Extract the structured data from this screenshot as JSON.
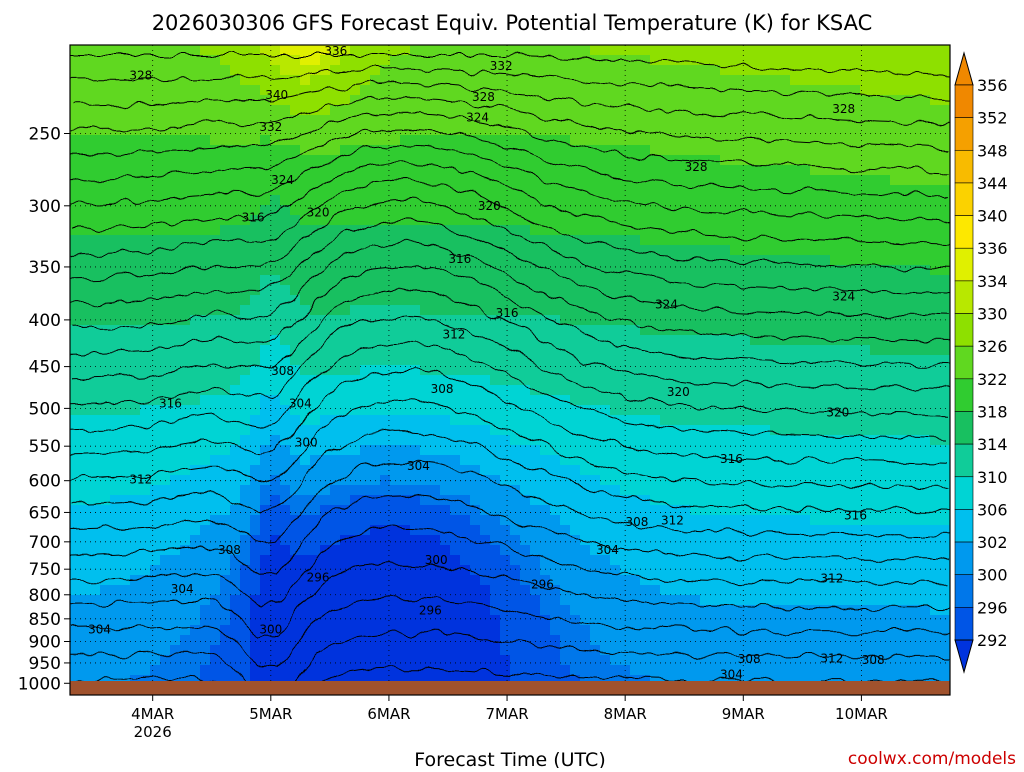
{
  "chart_data": {
    "type": "heatmap",
    "title": "2026030306 GFS Forecast Equiv. Potential Temperature (K) for KSAC",
    "xlabel": "Forecast Time (UTC)",
    "ylabel": "",
    "credit": "coolwx.com/models",
    "x_ticks": [
      {
        "day": 4,
        "label": "4MAR",
        "sublabel": "2026"
      },
      {
        "day": 5,
        "label": "5MAR",
        "sublabel": ""
      },
      {
        "day": 6,
        "label": "6MAR",
        "sublabel": ""
      },
      {
        "day": 7,
        "label": "7MAR",
        "sublabel": ""
      },
      {
        "day": 8,
        "label": "8MAR",
        "sublabel": ""
      },
      {
        "day": 9,
        "label": "9MAR",
        "sublabel": ""
      },
      {
        "day": 10,
        "label": "10MAR",
        "sublabel": ""
      }
    ],
    "x_range_days": [
      3.3,
      10.75
    ],
    "y_ticks": [
      250,
      300,
      350,
      400,
      450,
      500,
      550,
      600,
      650,
      700,
      750,
      800,
      850,
      900,
      950,
      1000
    ],
    "y_range_hpa": [
      200,
      1030
    ],
    "y_scale": "log-pressure",
    "colorbar": {
      "labels": [
        356,
        352,
        348,
        344,
        340,
        336,
        334,
        330,
        326,
        322,
        318,
        314,
        310,
        306,
        302,
        300,
        296,
        292
      ],
      "colors": [
        "#f08800",
        "#f5a000",
        "#f8bb00",
        "#fbd200",
        "#fde800",
        "#e0f000",
        "#b8e800",
        "#8ee000",
        "#60d820",
        "#30cc30",
        "#18c060",
        "#10cc99",
        "#00d4d4",
        "#00bfee",
        "#0099ee",
        "#0077ea",
        "#0055e6",
        "#0033dd"
      ],
      "extend": "both"
    },
    "contour_labels": [
      {
        "text": "336",
        "day": 5.55,
        "p": 203
      },
      {
        "text": "332",
        "day": 6.95,
        "p": 211
      },
      {
        "text": "328",
        "day": 3.9,
        "p": 216
      },
      {
        "text": "340",
        "day": 5.05,
        "p": 227
      },
      {
        "text": "328",
        "day": 6.8,
        "p": 228
      },
      {
        "text": "324",
        "day": 6.75,
        "p": 240
      },
      {
        "text": "332",
        "day": 5.0,
        "p": 246
      },
      {
        "text": "328",
        "day": 9.85,
        "p": 235
      },
      {
        "text": "328",
        "day": 8.6,
        "p": 272
      },
      {
        "text": "324",
        "day": 5.1,
        "p": 281
      },
      {
        "text": "320",
        "day": 5.4,
        "p": 305
      },
      {
        "text": "320",
        "day": 6.85,
        "p": 300
      },
      {
        "text": "316",
        "day": 4.85,
        "p": 309
      },
      {
        "text": "316",
        "day": 6.6,
        "p": 343
      },
      {
        "text": "324",
        "day": 8.35,
        "p": 385
      },
      {
        "text": "324",
        "day": 9.85,
        "p": 377
      },
      {
        "text": "316",
        "day": 7.0,
        "p": 393
      },
      {
        "text": "312",
        "day": 6.55,
        "p": 415
      },
      {
        "text": "308",
        "day": 5.1,
        "p": 455
      },
      {
        "text": "308",
        "day": 6.45,
        "p": 476
      },
      {
        "text": "316",
        "day": 4.15,
        "p": 494
      },
      {
        "text": "304",
        "day": 5.25,
        "p": 494
      },
      {
        "text": "320",
        "day": 8.45,
        "p": 480
      },
      {
        "text": "320",
        "day": 9.8,
        "p": 505
      },
      {
        "text": "300",
        "day": 5.3,
        "p": 545
      },
      {
        "text": "304",
        "day": 6.25,
        "p": 578
      },
      {
        "text": "316",
        "day": 8.9,
        "p": 568
      },
      {
        "text": "312",
        "day": 3.9,
        "p": 598
      },
      {
        "text": "308",
        "day": 8.1,
        "p": 666
      },
      {
        "text": "312",
        "day": 8.4,
        "p": 663
      },
      {
        "text": "316",
        "day": 9.95,
        "p": 655
      },
      {
        "text": "308",
        "day": 4.65,
        "p": 715
      },
      {
        "text": "304",
        "day": 7.85,
        "p": 715
      },
      {
        "text": "300",
        "day": 6.4,
        "p": 733
      },
      {
        "text": "296",
        "day": 5.4,
        "p": 766
      },
      {
        "text": "296",
        "day": 7.3,
        "p": 780
      },
      {
        "text": "312",
        "day": 9.75,
        "p": 768
      },
      {
        "text": "304",
        "day": 4.25,
        "p": 788
      },
      {
        "text": "296",
        "day": 6.35,
        "p": 832
      },
      {
        "text": "304",
        "day": 3.55,
        "p": 873
      },
      {
        "text": "300",
        "day": 5.0,
        "p": 873
      },
      {
        "text": "308",
        "day": 9.05,
        "p": 941
      },
      {
        "text": "312",
        "day": 9.75,
        "p": 940
      },
      {
        "text": "308",
        "day": 10.1,
        "p": 943
      },
      {
        "text": "304",
        "day": 8.9,
        "p": 978
      }
    ]
  }
}
